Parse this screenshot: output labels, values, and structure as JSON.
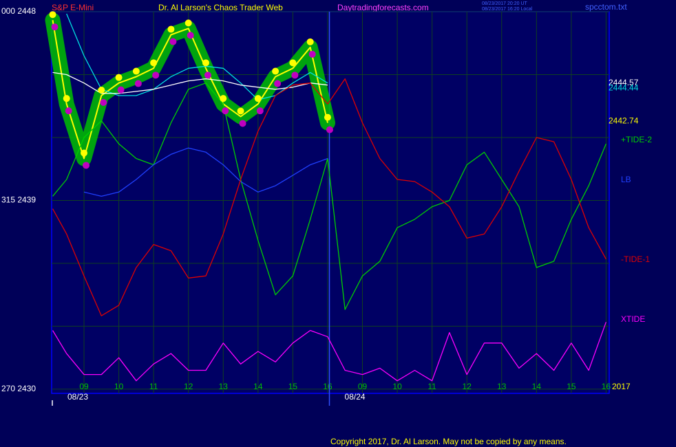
{
  "chart_data": {
    "type": "line",
    "subtitle": "S&P E-Mini",
    "title": "Dr. Al Larson's Chaos Trader Web",
    "site": "Daytradingforecasts.com",
    "timestamps": [
      "08/23/2017 20:20 UT",
      "08/23/2017 16:20 Local"
    ],
    "file": "spcctom.txt",
    "copyright": "Copyright 2017, Dr. Al Larson. May not be copied by any means.",
    "days": [
      "08/23",
      "08/24"
    ],
    "year": "2017",
    "x": [
      0.1,
      0.5,
      1,
      1.5,
      2,
      2.5,
      3,
      3.5,
      4,
      4.5,
      5,
      5.5,
      6,
      6.5,
      7,
      7.5,
      8,
      8.5,
      9,
      9.5,
      10,
      10.5,
      11,
      11.5,
      12,
      12.5,
      13,
      13.5,
      14,
      14.5,
      15,
      15.5,
      16
    ],
    "xlim": [
      0.07,
      16.09
    ],
    "xticks": [
      {
        "value": 1,
        "label": "09"
      },
      {
        "value": 2,
        "label": "10"
      },
      {
        "value": 3,
        "label": "11"
      },
      {
        "value": 4,
        "label": "12"
      },
      {
        "value": 5,
        "label": "13"
      },
      {
        "value": 6,
        "label": "14"
      },
      {
        "value": 7,
        "label": "15"
      },
      {
        "value": 8,
        "label": "16"
      },
      {
        "value": 9,
        "label": "09"
      },
      {
        "value": 10,
        "label": "10"
      },
      {
        "value": 11,
        "label": "11"
      },
      {
        "value": 12,
        "label": "12"
      },
      {
        "value": 13,
        "label": "13"
      },
      {
        "value": 14,
        "label": "14"
      },
      {
        "value": 15,
        "label": "15"
      },
      {
        "value": 16,
        "label": "16"
      }
    ],
    "ylim": [
      2429.8,
      2448
    ],
    "yticks": [
      {
        "value": 2448,
        "label": "000 2448"
      },
      {
        "value": 2439,
        "label": "315 2439"
      },
      {
        "value": 2430,
        "label": "270 2430"
      }
    ],
    "ygrid": [
      2445,
      2442,
      2436,
      2433
    ],
    "grid": true,
    "series": [
      {
        "color": "#ffff00",
        "glow": "#00c000",
        "values": [
          2447.6,
          2443.6,
          2441.0,
          2444.0,
          2444.6,
          2444.9,
          2445.3,
          2446.9,
          2447.2,
          2445.3,
          2443.6,
          2443.0,
          2443.6,
          2444.9,
          2445.3,
          2446.3,
          2442.7,
          null,
          null,
          null,
          null,
          null,
          null,
          null,
          null,
          null,
          null,
          null,
          null,
          null,
          null,
          null,
          null
        ]
      },
      {
        "color": "#00e0e0",
        "values": [
          null,
          2447.9,
          2445.9,
          2444.3,
          2444.0,
          2444.0,
          2444.3,
          2444.9,
          2445.3,
          2445.4,
          2445.3,
          2444.6,
          2443.8,
          2444.0,
          2444.6,
          2445.1,
          2444.6,
          null,
          null,
          null,
          null,
          null,
          null,
          null,
          null,
          null,
          null,
          null,
          null,
          null,
          null,
          null,
          null
        ]
      },
      {
        "color": "#ffffff",
        "values": [
          2445.1,
          2445.0,
          2444.6,
          2444.1,
          2444.1,
          2444.2,
          2444.3,
          2444.5,
          2444.7,
          2444.8,
          2444.7,
          2444.5,
          2444.4,
          2444.3,
          2444.4,
          2444.6,
          2444.5,
          null,
          null,
          null,
          null,
          null,
          null,
          null,
          null,
          null,
          null,
          null,
          null,
          null,
          null,
          null,
          null
        ]
      },
      {
        "name": "+TIDE-2",
        "color": "#00d000",
        "values": [
          2439.2,
          2440.0,
          2442.0,
          2442.8,
          2441.7,
          2441.0,
          2440.7,
          2442.7,
          2444.3,
          2444.6,
          2443.6,
          2440.0,
          2437.1,
          2434.5,
          2435.4,
          2438.1,
          2441.0,
          2433.8,
          2435.4,
          2436.1,
          2437.7,
          2438.1,
          2438.7,
          2439.0,
          2440.7,
          2441.3,
          2440.0,
          2438.7,
          2435.8,
          2436.1,
          2438.1,
          2439.7,
          2441.7
        ]
      },
      {
        "name": "LB",
        "color": "#2040ff",
        "values": [
          null,
          null,
          2439.4,
          2439.2,
          2439.4,
          2440.0,
          2440.7,
          2441.2,
          2441.5,
          2441.3,
          2440.7,
          2439.9,
          2439.4,
          2439.7,
          2440.2,
          2440.7,
          2441.0,
          null,
          null,
          null,
          null,
          null,
          null,
          null,
          null,
          null,
          null,
          null,
          null,
          null,
          null,
          null,
          null
        ]
      },
      {
        "name": "-TIDE-1",
        "color": "#e00000",
        "values": [
          2438.6,
          2437.4,
          2435.4,
          2433.5,
          2434.0,
          2435.8,
          2436.9,
          2436.6,
          2435.3,
          2435.4,
          2437.4,
          2440.0,
          2442.3,
          2444.0,
          2444.5,
          2444.6,
          2443.6,
          2444.8,
          2442.7,
          2441.0,
          2440.0,
          2439.9,
          2439.4,
          2438.7,
          2437.2,
          2437.4,
          2438.7,
          2440.4,
          2442.0,
          2441.8,
          2440.0,
          2437.7,
          2436.2
        ]
      },
      {
        "name": "XTIDE",
        "color": "#ff00ff",
        "values": [
          2432.8,
          2431.7,
          2430.7,
          2430.7,
          2431.5,
          2430.4,
          2431.2,
          2431.7,
          2430.9,
          2430.9,
          2432.2,
          2431.2,
          2431.8,
          2431.3,
          2432.2,
          2432.8,
          2432.5,
          2430.9,
          2430.7,
          2431.0,
          2430.4,
          2430.9,
          2430.4,
          2432.7,
          2430.7,
          2432.2,
          2432.2,
          2431.0,
          2431.7,
          2430.9,
          2432.2,
          2430.9,
          2433.2
        ]
      }
    ],
    "annotations": [
      {
        "text": "2444.57",
        "value": 2444.57,
        "color": "#ffffff"
      },
      {
        "text": "2444.44",
        "value": 2444.44,
        "color": "#00e0e0"
      },
      {
        "text": "2442.74",
        "value": 2442.74,
        "color": "#ffff00"
      }
    ]
  }
}
